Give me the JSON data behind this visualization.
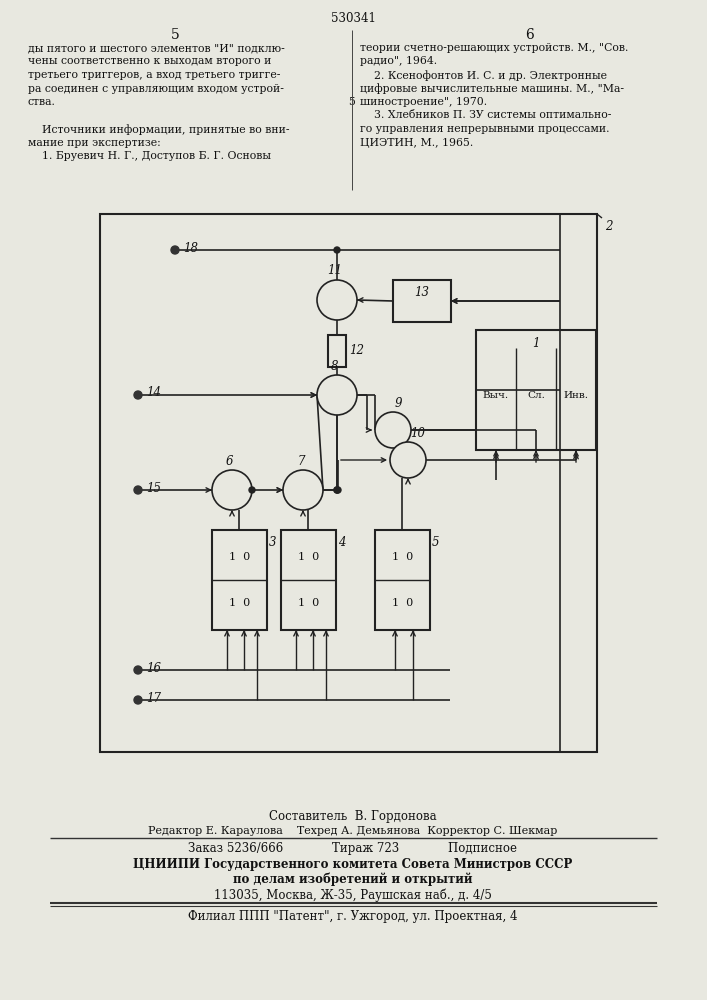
{
  "bg_color": "#e8e8e0",
  "page_bg": "#e8e8e0",
  "page_title": "530341",
  "col_left_num": "5",
  "col_right_num": "6",
  "col_left_text": [
    "ды пятого и шестого элементов \"И\" подклю-",
    "чены соответственно к выходам второго и",
    "третьего триггеров, а вход третьего тригге-",
    "ра соединен с управляющим входом устрой-",
    "ства.",
    "",
    "    Источники информации, принятые во вни-",
    "мание при экспертизе:",
    "    1. Бруевич Н. Г., Доступов Б. Г. Основы"
  ],
  "col_right_text": [
    "теории счетно-решающих устройств. М., \"Сов.",
    "радио\", 1964.",
    "    2. Ксенофонтов И. С. и др. Электронные",
    "цифровые вычислительные машины. М., \"Ма-",
    "шиностроение\", 1970.",
    "    3. Хлебников П. ЗУ системы оптимально-",
    "го управления непрерывными процессами.",
    "ЦИЭТИН, М., 1965."
  ],
  "num5_marker": "5",
  "footer_line1": "Составитель  В. Гордонова",
  "footer_line2": "Редактор Е. Караулова    Техред А. Демьянова  Корректор С. Шекмар",
  "footer_line3": "Заказ 5236/666             Тираж 723             Подписное",
  "footer_line4": "ЦНИИПИ Государственного комитета Совета Министров СССР",
  "footer_line5": "по делам изобретений и открытий",
  "footer_line6": "113035, Москва, Ж-35, Раушская наб., д. 4/5",
  "footer_line7": "Филиал ППП \"Патент\", г. Ужгород, ул. Проектная, 4"
}
